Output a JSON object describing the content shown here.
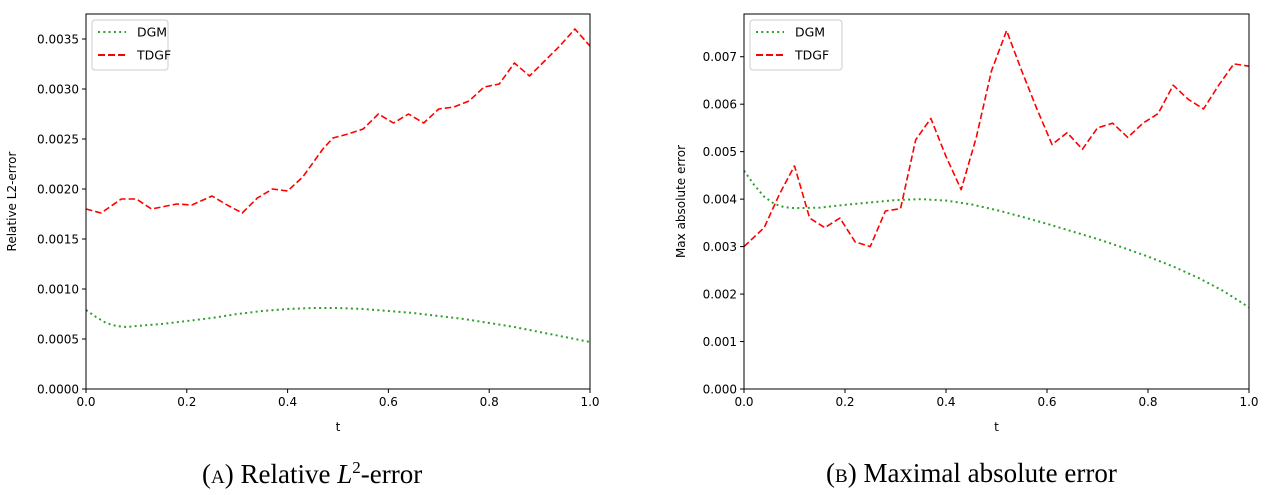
{
  "colors": {
    "dgm": "#2ca02c",
    "tdgf": "#ff0000"
  },
  "captions": [
    {
      "prefix_open": "(",
      "prefix_letter": "A",
      "prefix_close": ")",
      "text_before": "Relative ",
      "math": "L",
      "sup": "2",
      "text_after": "-error"
    },
    {
      "prefix_open": "(",
      "prefix_letter": "B",
      "prefix_close": ")",
      "text_before": "Maximal absolute error",
      "math": "",
      "sup": "",
      "text_after": ""
    }
  ],
  "chart_data": [
    {
      "type": "line",
      "title": "",
      "xlabel": "t",
      "ylabel": "Relative L2-error",
      "xlim": [
        0,
        1
      ],
      "ylim": [
        0,
        0.00375
      ],
      "xticks": [
        0,
        0.2,
        0.4,
        0.6,
        0.8,
        1.0
      ],
      "xtick_labels": [
        "0.0",
        "0.2",
        "0.4",
        "0.6",
        "0.8",
        "1.0"
      ],
      "yticks": [
        0,
        0.0005,
        0.001,
        0.0015,
        0.002,
        0.0025,
        0.003,
        0.0035
      ],
      "ytick_labels": [
        "0.0000",
        "0.0005",
        "0.0010",
        "0.0015",
        "0.0020",
        "0.0025",
        "0.0030",
        "0.0035"
      ],
      "legend": "top-left",
      "series": [
        {
          "name": "DGM",
          "style": "dotted",
          "x": [
            0.0,
            0.02,
            0.04,
            0.06,
            0.08,
            0.1,
            0.15,
            0.2,
            0.25,
            0.3,
            0.35,
            0.4,
            0.45,
            0.5,
            0.55,
            0.6,
            0.65,
            0.7,
            0.75,
            0.8,
            0.85,
            0.9,
            0.95,
            1.0
          ],
          "y": [
            0.00079,
            0.00072,
            0.00066,
            0.00063,
            0.00062,
            0.00063,
            0.00065,
            0.00068,
            0.00071,
            0.00075,
            0.00078,
            0.0008,
            0.00081,
            0.00081,
            0.0008,
            0.00078,
            0.00076,
            0.00073,
            0.0007,
            0.00066,
            0.00062,
            0.00057,
            0.00052,
            0.00047
          ]
        },
        {
          "name": "TDGF",
          "style": "dashed",
          "x": [
            0.0,
            0.03,
            0.07,
            0.1,
            0.13,
            0.18,
            0.21,
            0.25,
            0.28,
            0.31,
            0.34,
            0.37,
            0.4,
            0.43,
            0.47,
            0.49,
            0.52,
            0.55,
            0.58,
            0.61,
            0.64,
            0.67,
            0.7,
            0.73,
            0.76,
            0.79,
            0.82,
            0.85,
            0.88,
            0.91,
            0.94,
            0.97,
            1.0
          ],
          "y": [
            0.0018,
            0.00176,
            0.0019,
            0.0019,
            0.0018,
            0.00185,
            0.00184,
            0.00193,
            0.00184,
            0.00176,
            0.00191,
            0.002,
            0.00198,
            0.00212,
            0.0024,
            0.00251,
            0.00255,
            0.0026,
            0.00275,
            0.00266,
            0.00275,
            0.00266,
            0.0028,
            0.00282,
            0.00288,
            0.00302,
            0.00305,
            0.00326,
            0.00313,
            0.00328,
            0.00343,
            0.0036,
            0.00343
          ]
        }
      ]
    },
    {
      "type": "line",
      "title": "",
      "xlabel": "t",
      "ylabel": "Max absolute error",
      "xlim": [
        0,
        1
      ],
      "ylim": [
        0,
        0.0079
      ],
      "xticks": [
        0,
        0.2,
        0.4,
        0.6,
        0.8,
        1.0
      ],
      "xtick_labels": [
        "0.0",
        "0.2",
        "0.4",
        "0.6",
        "0.8",
        "1.0"
      ],
      "yticks": [
        0,
        0.001,
        0.002,
        0.003,
        0.004,
        0.005,
        0.006,
        0.007
      ],
      "ytick_labels": [
        "0.000",
        "0.001",
        "0.002",
        "0.003",
        "0.004",
        "0.005",
        "0.006",
        "0.007"
      ],
      "legend": "top-left",
      "series": [
        {
          "name": "DGM",
          "style": "dotted",
          "x": [
            0.0,
            0.02,
            0.04,
            0.06,
            0.08,
            0.1,
            0.15,
            0.2,
            0.25,
            0.3,
            0.35,
            0.4,
            0.45,
            0.5,
            0.55,
            0.6,
            0.65,
            0.7,
            0.75,
            0.8,
            0.85,
            0.9,
            0.95,
            1.0
          ],
          "y": [
            0.0046,
            0.0043,
            0.00405,
            0.0039,
            0.00383,
            0.00381,
            0.00382,
            0.00388,
            0.00393,
            0.00398,
            0.004,
            0.00397,
            0.00389,
            0.00377,
            0.00363,
            0.00348,
            0.00332,
            0.00316,
            0.00298,
            0.00279,
            0.00258,
            0.00234,
            0.00206,
            0.00172
          ]
        },
        {
          "name": "TDGF",
          "style": "dashed",
          "x": [
            0.0,
            0.04,
            0.07,
            0.1,
            0.13,
            0.16,
            0.19,
            0.22,
            0.25,
            0.28,
            0.31,
            0.34,
            0.37,
            0.4,
            0.43,
            0.46,
            0.49,
            0.52,
            0.55,
            0.58,
            0.61,
            0.64,
            0.67,
            0.7,
            0.73,
            0.76,
            0.79,
            0.82,
            0.85,
            0.88,
            0.91,
            0.94,
            0.97,
            1.0
          ],
          "y": [
            0.003,
            0.0034,
            0.0041,
            0.0047,
            0.0036,
            0.0034,
            0.0036,
            0.0031,
            0.003,
            0.00375,
            0.0038,
            0.00525,
            0.0057,
            0.0049,
            0.0042,
            0.0053,
            0.0067,
            0.00755,
            0.0067,
            0.0059,
            0.00515,
            0.0054,
            0.00505,
            0.0055,
            0.0056,
            0.0053,
            0.0056,
            0.0058,
            0.0064,
            0.0061,
            0.0059,
            0.0064,
            0.00685,
            0.0068
          ]
        }
      ]
    }
  ]
}
